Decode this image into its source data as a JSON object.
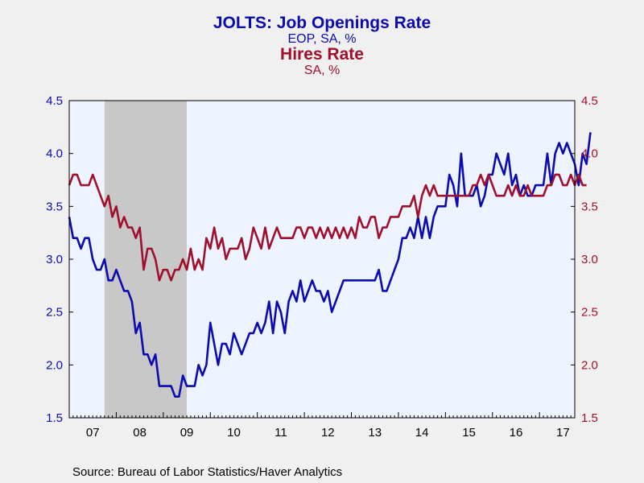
{
  "chart_data": {
    "type": "line",
    "title": "JOLTS: Job Openings Rate",
    "subtitle": "EOP, SA, %",
    "title2": "Hires Rate",
    "subtitle2": "SA, %",
    "source": "Source:  Bureau of Labor Statistics/Haver Analytics",
    "ylim": [
      1.5,
      4.5
    ],
    "yticks": [
      "1.5",
      "2.0",
      "2.5",
      "3.0",
      "3.5",
      "4.0",
      "4.5"
    ],
    "xlim": [
      2007.0,
      2017.75
    ],
    "xtick_labels": [
      {
        "x": 2007.5,
        "label": "07"
      },
      {
        "x": 2008.5,
        "label": "08"
      },
      {
        "x": 2009.5,
        "label": "09"
      },
      {
        "x": 2010.5,
        "label": "10"
      },
      {
        "x": 2011.5,
        "label": "11"
      },
      {
        "x": 2012.5,
        "label": "12"
      },
      {
        "x": 2013.5,
        "label": "13"
      },
      {
        "x": 2014.5,
        "label": "14"
      },
      {
        "x": 2015.5,
        "label": "15"
      },
      {
        "x": 2016.5,
        "label": "16"
      },
      {
        "x": 2017.5,
        "label": "17"
      }
    ],
    "recession": {
      "start": 2007.75,
      "end": 2009.5
    },
    "grid": false,
    "colors": {
      "openings": "#0b0bb0",
      "hires": "#a0102c",
      "recession": "#c8c8c8",
      "plot_bg": "#eef4ff",
      "text": "#000000"
    },
    "series": [
      {
        "key": "openings",
        "start": 2007.0,
        "values": [
          3.4,
          3.2,
          3.2,
          3.1,
          3.2,
          3.2,
          3.0,
          2.9,
          2.9,
          3.0,
          2.8,
          2.8,
          2.9,
          2.8,
          2.7,
          2.7,
          2.6,
          2.3,
          2.4,
          2.1,
          2.1,
          2.0,
          2.1,
          1.8,
          1.8,
          1.8,
          1.8,
          1.7,
          1.7,
          1.9,
          1.8,
          1.8,
          1.8,
          2.0,
          1.9,
          2.0,
          2.4,
          2.2,
          2.0,
          2.2,
          2.2,
          2.1,
          2.3,
          2.2,
          2.1,
          2.2,
          2.3,
          2.3,
          2.4,
          2.3,
          2.4,
          2.6,
          2.3,
          2.6,
          2.5,
          2.3,
          2.6,
          2.7,
          2.6,
          2.8,
          2.6,
          2.7,
          2.8,
          2.7,
          2.7,
          2.6,
          2.7,
          2.5,
          2.6,
          2.7,
          2.8,
          2.8,
          2.8,
          2.8,
          2.8,
          2.8,
          2.8,
          2.8,
          2.8,
          2.9,
          2.7,
          2.7,
          2.8,
          2.9,
          3.0,
          3.2,
          3.2,
          3.3,
          3.2,
          3.4,
          3.2,
          3.4,
          3.2,
          3.4,
          3.5,
          3.5,
          3.5,
          3.8,
          3.7,
          3.5,
          4.0,
          3.6,
          3.6,
          3.6,
          3.7,
          3.5,
          3.6,
          3.8,
          3.8,
          4.0,
          3.9,
          3.8,
          4.0,
          3.7,
          3.8,
          3.6,
          3.7,
          3.6,
          3.6,
          3.7,
          3.7,
          3.7,
          4.0,
          3.7,
          4.0,
          4.1,
          4.0,
          4.1,
          4.0,
          3.9,
          3.7,
          4.0,
          3.9,
          4.2
        ]
      },
      {
        "key": "hires",
        "start": 2007.0,
        "values": [
          3.7,
          3.8,
          3.8,
          3.7,
          3.7,
          3.7,
          3.8,
          3.7,
          3.6,
          3.5,
          3.6,
          3.4,
          3.5,
          3.3,
          3.4,
          3.3,
          3.3,
          3.2,
          3.3,
          2.9,
          3.1,
          3.1,
          3.0,
          2.8,
          2.9,
          2.9,
          2.8,
          2.9,
          2.9,
          3.0,
          2.9,
          3.1,
          2.9,
          3.0,
          2.9,
          3.2,
          3.1,
          3.3,
          3.1,
          3.2,
          3.0,
          3.1,
          3.1,
          3.1,
          3.2,
          3.0,
          3.1,
          3.3,
          3.2,
          3.1,
          3.3,
          3.1,
          3.2,
          3.3,
          3.2,
          3.2,
          3.2,
          3.2,
          3.3,
          3.3,
          3.2,
          3.3,
          3.3,
          3.2,
          3.3,
          3.2,
          3.3,
          3.2,
          3.3,
          3.2,
          3.3,
          3.2,
          3.3,
          3.2,
          3.4,
          3.3,
          3.3,
          3.4,
          3.4,
          3.2,
          3.3,
          3.3,
          3.4,
          3.4,
          3.4,
          3.5,
          3.5,
          3.5,
          3.6,
          3.4,
          3.6,
          3.7,
          3.6,
          3.7,
          3.6,
          3.6,
          3.6,
          3.6,
          3.6,
          3.6,
          3.6,
          3.6,
          3.6,
          3.7,
          3.7,
          3.8,
          3.7,
          3.8,
          3.7,
          3.6,
          3.6,
          3.6,
          3.7,
          3.6,
          3.7,
          3.6,
          3.6,
          3.7,
          3.6,
          3.6,
          3.6,
          3.6,
          3.7,
          3.7,
          3.8,
          3.8,
          3.7,
          3.7,
          3.8,
          3.7,
          3.8,
          3.7,
          3.7
        ]
      }
    ]
  }
}
